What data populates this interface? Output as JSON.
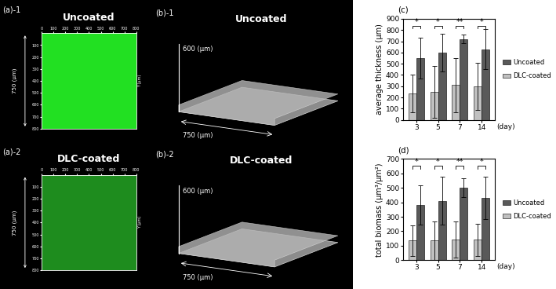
{
  "image_panels": [
    {
      "label": "(a)-1",
      "title": "Uncoated",
      "size_label": "750 (μm)",
      "y_axis_label": "Y (μm)",
      "color": "#22e022",
      "xlim": [
        0,
        800
      ],
      "ylim": [
        800,
        0
      ],
      "x_ticks": [
        0,
        100,
        200,
        300,
        400,
        500,
        600,
        700,
        800
      ],
      "y_ticks": [
        100,
        200,
        300,
        400,
        500,
        600,
        700,
        800
      ]
    },
    {
      "label": "(a)-2",
      "title": "DLC-coated",
      "size_label": "750 (μm)",
      "y_axis_label": "Y (μm)",
      "color": "#1e8c1e",
      "xlim": [
        0,
        800
      ],
      "ylim": [
        800,
        0
      ],
      "x_ticks": [
        0,
        100,
        200,
        300,
        400,
        500,
        600,
        700,
        800
      ],
      "y_ticks": [
        100,
        200,
        300,
        400,
        500,
        600,
        700,
        800
      ]
    }
  ],
  "surface_panels": [
    {
      "label": "(b)-1",
      "title": "Uncoated",
      "height_label": "600 (μm)",
      "width_label": "750 (μm)"
    },
    {
      "label": "(b)-2",
      "title": "DLC-coated",
      "height_label": "600 (μm)",
      "width_label": "750 (μm)"
    }
  ],
  "chart_data": [
    {
      "type": "bar",
      "title": "(c)",
      "y_label": "average thickness (μm)",
      "x_label": "(day)",
      "categories": [
        "3",
        "5",
        "7",
        "14"
      ],
      "series": [
        {
          "name": "DLC-coated",
          "color": "#c0c0c0",
          "values": [
            235,
            250,
            310,
            300
          ],
          "errors": [
            170,
            230,
            240,
            210
          ]
        },
        {
          "name": "Uncoated",
          "color": "#595959",
          "values": [
            550,
            600,
            720,
            630
          ],
          "errors": [
            180,
            170,
            40,
            180
          ]
        }
      ],
      "significance": [
        "*",
        "*",
        "**",
        "*"
      ],
      "ylim": [
        0,
        900
      ],
      "yticks": [
        0,
        100,
        200,
        300,
        400,
        500,
        600,
        700,
        800,
        900
      ],
      "grid": false,
      "legend": "right"
    },
    {
      "type": "bar",
      "title": "(d)",
      "y_label": "total biomass (μm³/μm²)",
      "x_label": "(day)",
      "categories": [
        "3",
        "5",
        "7",
        "14"
      ],
      "series": [
        {
          "name": "DLC-coated",
          "color": "#c0c0c0",
          "values": [
            135,
            135,
            140,
            140
          ],
          "errors": [
            105,
            135,
            125,
            110
          ]
        },
        {
          "name": "Uncoated",
          "color": "#595959",
          "values": [
            380,
            410,
            500,
            430
          ],
          "errors": [
            135,
            165,
            65,
            145
          ]
        }
      ],
      "significance": [
        "*",
        "*",
        "**",
        "*"
      ],
      "ylim": [
        0,
        700
      ],
      "yticks": [
        0,
        100,
        200,
        300,
        400,
        500,
        600,
        700
      ],
      "grid": false,
      "legend": "right"
    }
  ]
}
